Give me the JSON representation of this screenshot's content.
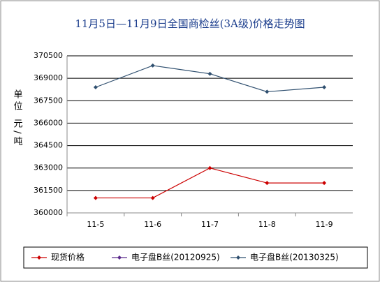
{
  "chart_data": {
    "type": "line",
    "title": "11月5日—11月9日全国商检丝(3A级)价格走势图",
    "y_label": "单位 元/吨",
    "categories": [
      "11-5",
      "11-6",
      "11-7",
      "11-8",
      "11-9"
    ],
    "series": [
      {
        "name": "现货价格",
        "color": "#cc0000",
        "values": [
          361000,
          361000,
          363000,
          362000,
          362000
        ]
      },
      {
        "name": "电子盘B丝(20120925)",
        "color": "#5b2a8c",
        "values": [
          null,
          null,
          null,
          null,
          null
        ]
      },
      {
        "name": "电子盘B丝(20130325)",
        "color": "#2f4f6f",
        "values": [
          368400,
          369850,
          369300,
          368100,
          368400
        ]
      }
    ],
    "ylim": [
      360000,
      370500
    ],
    "yticks": [
      360000,
      361500,
      363000,
      364500,
      366000,
      367500,
      369000,
      370500
    ],
    "grid": true,
    "legend": "bottom"
  }
}
